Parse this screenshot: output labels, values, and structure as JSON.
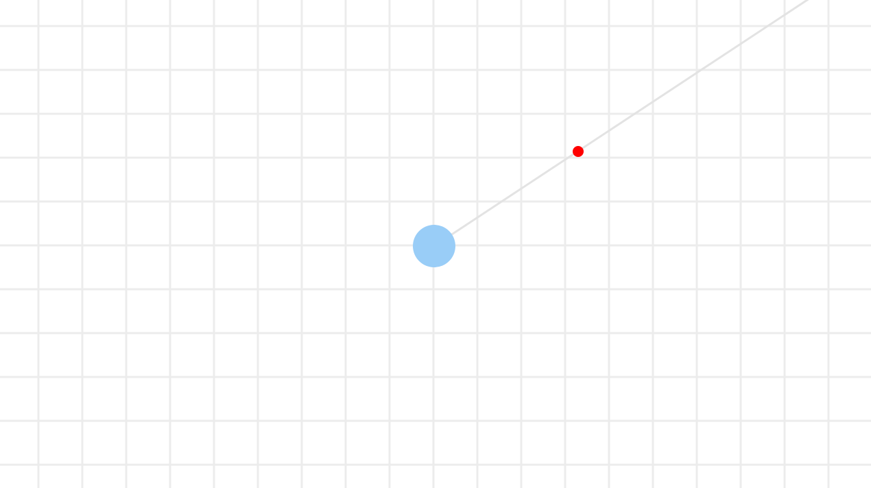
{
  "scene": {
    "background_color": "#ffffff",
    "grid_color": "#ececec",
    "aim_line_color": "#e3e3e3",
    "player_color": "#99cdf7",
    "target_color": "#ff0000"
  }
}
